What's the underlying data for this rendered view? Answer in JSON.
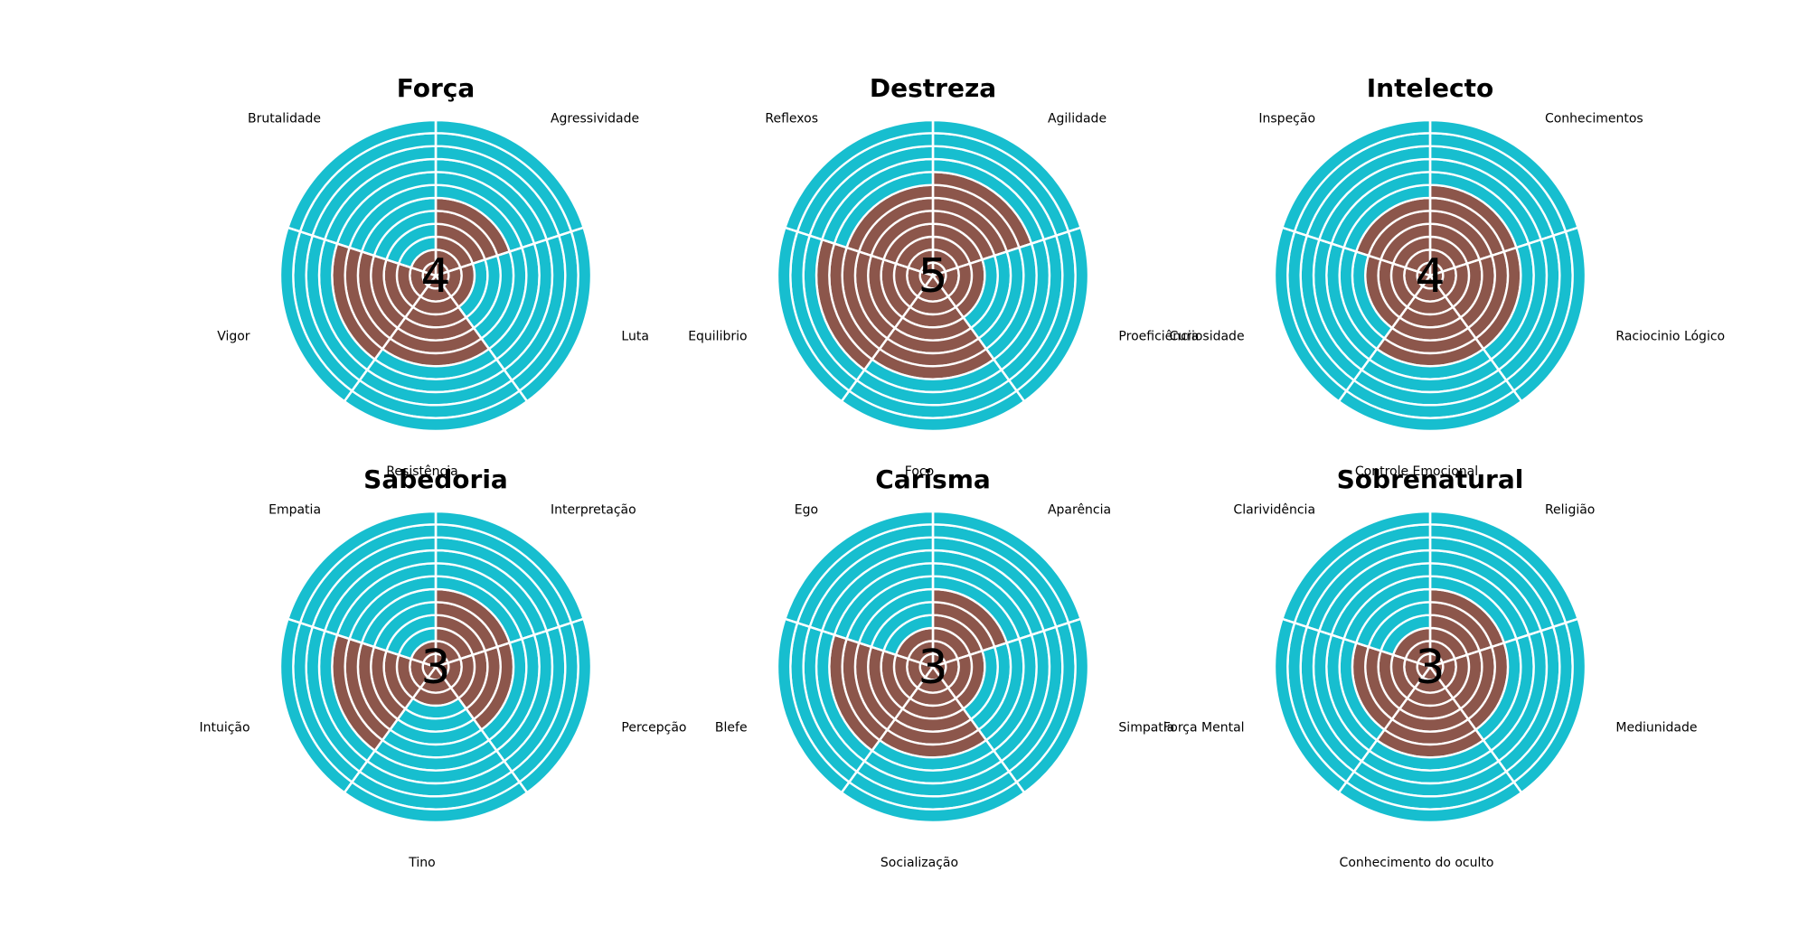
{
  "chart_data": [
    {
      "type": "polar-bar",
      "title": "Força",
      "center_value": "4",
      "categories": [
        "Agressividade",
        "Luta",
        "Resistência",
        "Vigor",
        "Brutalidade"
      ],
      "values": [
        6,
        3,
        7,
        8,
        2
      ],
      "max": 12,
      "colors": {
        "filled": "#8c564b",
        "empty": "#17becf"
      }
    },
    {
      "type": "polar-bar",
      "title": "Destreza",
      "center_value": "5",
      "categories": [
        "Agilidade",
        "Proeficiência",
        "Foco",
        "Equilibrio",
        "Reflexos"
      ],
      "values": [
        8,
        4,
        8,
        9,
        7
      ],
      "max": 12,
      "colors": {
        "filled": "#8c564b",
        "empty": "#17becf"
      }
    },
    {
      "type": "polar-bar",
      "title": "Intelecto",
      "center_value": "4",
      "categories": [
        "Conhecimentos",
        "Raciocinio Lógico",
        "Controle Emocional",
        "Curiosidade",
        "Inspeção"
      ],
      "values": [
        7,
        7,
        7,
        5,
        6
      ],
      "max": 12,
      "colors": {
        "filled": "#8c564b",
        "empty": "#17becf"
      }
    },
    {
      "type": "polar-bar",
      "title": "Sabedoria",
      "center_value": "3",
      "categories": [
        "Interpretação",
        "Percepção",
        "Tino",
        "Intuição",
        "Empatia"
      ],
      "values": [
        6,
        6,
        3,
        8,
        2
      ],
      "max": 12,
      "colors": {
        "filled": "#8c564b",
        "empty": "#17becf"
      }
    },
    {
      "type": "polar-bar",
      "title": "Carisma",
      "center_value": "3",
      "categories": [
        "Aparência",
        "Simpatia",
        "Socialização",
        "Blefe",
        "Ego"
      ],
      "values": [
        6,
        4,
        7,
        8,
        3
      ],
      "max": 12,
      "colors": {
        "filled": "#8c564b",
        "empty": "#17becf"
      }
    },
    {
      "type": "polar-bar",
      "title": "Sobrenatural",
      "center_value": "3",
      "categories": [
        "Religião",
        "Mediunidade",
        "Conhecimento do oculto",
        "Força Mental",
        "Clarividência"
      ],
      "values": [
        6,
        6,
        7,
        6,
        3
      ],
      "max": 12,
      "colors": {
        "filled": "#8c564b",
        "empty": "#17becf"
      }
    }
  ]
}
